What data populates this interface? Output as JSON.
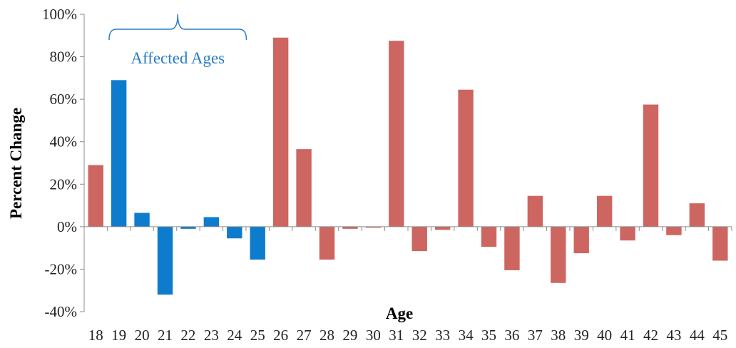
{
  "chart_data": {
    "type": "bar",
    "title": "",
    "xlabel": "Age",
    "ylabel": "Percent Change",
    "ylim": [
      -40,
      100
    ],
    "y_ticks": [
      "100%",
      "80%",
      "60%",
      "40%",
      "20%",
      "0%",
      "-20%",
      "-40%"
    ],
    "grid": false,
    "legend": "none",
    "categories": [
      "18",
      "19",
      "20",
      "21",
      "22",
      "23",
      "24",
      "25",
      "26",
      "27",
      "28",
      "29",
      "30",
      "31",
      "32",
      "33",
      "34",
      "35",
      "36",
      "37",
      "38",
      "39",
      "40",
      "41",
      "42",
      "43",
      "44",
      "45"
    ],
    "values": [
      29,
      69,
      6.5,
      -32,
      -1,
      4.5,
      -5.5,
      -15.5,
      89,
      36.5,
      -15.5,
      -1,
      -0.5,
      87.5,
      -11.5,
      -1.5,
      64.5,
      -9.5,
      -20.5,
      14.5,
      -26.5,
      -12.5,
      14.5,
      -6.5,
      57.5,
      -4,
      11,
      -16
    ],
    "highlighted_categories": [
      "19",
      "20",
      "21",
      "22",
      "23",
      "24",
      "25"
    ],
    "colors": {
      "default": "#cd6660",
      "highlight": "#0e7ccc",
      "axis": "#8c8c8c"
    },
    "annotation": {
      "label": "Affected Ages",
      "from": "19",
      "to": "25",
      "color": "#2b7cc4"
    }
  }
}
